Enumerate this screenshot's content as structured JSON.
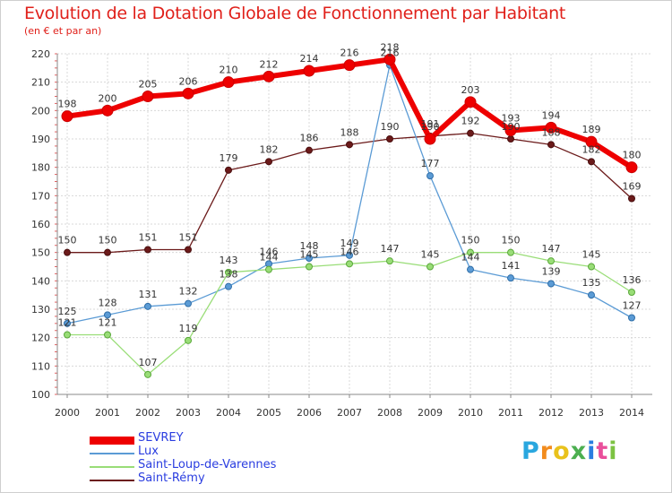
{
  "header": {
    "title": "Evolution de la Dotation Globale de Fonctionnement par Habitant",
    "subtitle": "(en € et par an)"
  },
  "logo": {
    "text": "Proxiti",
    "letters": [
      "P",
      "r",
      "o",
      "x",
      "i",
      "t",
      "i"
    ],
    "letter_colors": [
      "#2aa7df",
      "#f28c1e",
      "#e9c21c",
      "#4caf50",
      "#2a7de0",
      "#e94f9b",
      "#7cc242"
    ]
  },
  "chart_data": {
    "type": "line",
    "title": "Evolution de la Dotation Globale de Fonctionnement par Habitant",
    "subtitle": "(en € et par an)",
    "xlabel": "",
    "ylabel": "",
    "x": [
      "2000",
      "2001",
      "2002",
      "2003",
      "2004",
      "2005",
      "2006",
      "2007",
      "2008",
      "2009",
      "2010",
      "2011",
      "2012",
      "2013",
      "2014"
    ],
    "ylim": [
      100,
      220
    ],
    "yticks": [
      100,
      110,
      120,
      130,
      140,
      150,
      160,
      170,
      180,
      190,
      200,
      210,
      220
    ],
    "grid": true,
    "legend_position": "bottom-left",
    "series": [
      {
        "name": "SEVREY",
        "color": "#ee0000",
        "values": [
          198,
          200,
          205,
          206,
          210,
          212,
          214,
          216,
          218,
          190,
          203,
          193,
          194,
          189,
          180
        ]
      },
      {
        "name": "Lux",
        "color": "#5b9bd5",
        "values": [
          125,
          128,
          131,
          132,
          138,
          146,
          148,
          149,
          216,
          177,
          144,
          141,
          139,
          135,
          127
        ]
      },
      {
        "name": "Saint-Loup-de-Varennes",
        "color": "#99dd77",
        "values": [
          121,
          121,
          107,
          119,
          143,
          144,
          145,
          146,
          147,
          145,
          150,
          150,
          147,
          145,
          136
        ]
      },
      {
        "name": "Saint-Rémy",
        "color": "#6b1a1a",
        "values": [
          150,
          150,
          151,
          151,
          179,
          182,
          186,
          188,
          190,
          191,
          192,
          190,
          188,
          182,
          169
        ]
      }
    ]
  }
}
